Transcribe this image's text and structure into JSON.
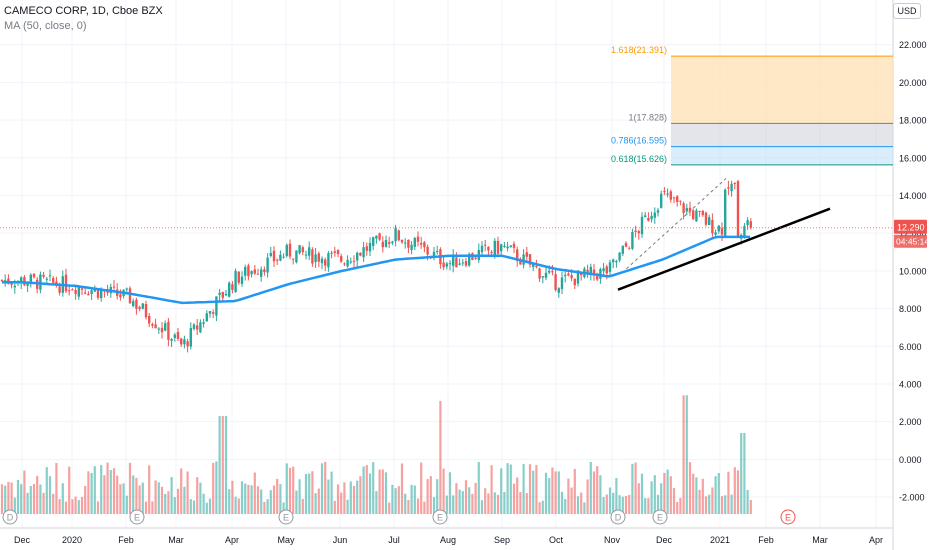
{
  "header": {
    "title": "CAMECO CORP, 1D, Cboe BZX",
    "indicator": "MA (50, close, 0)",
    "currency": "USD"
  },
  "price_tag": {
    "price": "12.290",
    "countdown": "04:45:14"
  },
  "colors": {
    "up": "#26a69a",
    "down": "#ef5350",
    "ma": "#2196f3",
    "trendline": "#000000",
    "fib_1618": "#ff9800",
    "fib_1": "#787b86",
    "fib_0786": "#2196f3",
    "fib_0618": "#089981",
    "grid": "#f0f3fa",
    "axis_text": "#131722"
  },
  "events": [
    "D",
    "E",
    "E",
    "E",
    "D",
    "E",
    "E"
  ],
  "chart_data": {
    "type": "candlestick",
    "title": "CAMECO CORP, 1D, Cboe BZX",
    "x_ticks": [
      "Dec",
      "2020",
      "Feb",
      "Mar",
      "Apr",
      "May",
      "Jun",
      "Jul",
      "Aug",
      "Sep",
      "Oct",
      "Nov",
      "Dec",
      "2021",
      "Feb",
      "Mar",
      "Apr"
    ],
    "price_ticks": [
      "22.000",
      "20.000",
      "18.000",
      "16.000",
      "14.000",
      "12.000",
      "10.000",
      "8.000",
      "6.000",
      "4.000",
      "2.000",
      "0.000",
      "-2.000"
    ],
    "ylim": [
      -2.9,
      24.0
    ],
    "price_series": {
      "dates": [
        "2019-12",
        "2020-01",
        "2020-02",
        "2020-03",
        "2020-04",
        "2020-05",
        "2020-06",
        "2020-07",
        "2020-08",
        "2020-09",
        "2020-10",
        "2020-11",
        "2020-12",
        "2021-01"
      ],
      "close": [
        9.5,
        9.2,
        8.6,
        6.0,
        9.6,
        11.0,
        10.6,
        11.9,
        10.4,
        11.3,
        9.4,
        10.0,
        14.0,
        12.3
      ]
    },
    "ma50": [
      9.4,
      9.2,
      8.8,
      8.3,
      8.4,
      9.3,
      10.0,
      10.6,
      10.8,
      10.8,
      10.1,
      9.7,
      10.6,
      11.8
    ],
    "fib_levels": [
      {
        "label": "1.618(21.391)",
        "value": 21.391
      },
      {
        "label": "1(17.828)",
        "value": 17.828
      },
      {
        "label": "0.786(16.595)",
        "value": 16.595
      },
      {
        "label": "0.618(15.626)",
        "value": 15.626
      }
    ],
    "trendline": {
      "from": [
        "2020-11",
        9.0
      ],
      "to": [
        "2021-02",
        13.3
      ]
    },
    "last_price": 12.29,
    "volume": {
      "label": "volume"
    }
  }
}
